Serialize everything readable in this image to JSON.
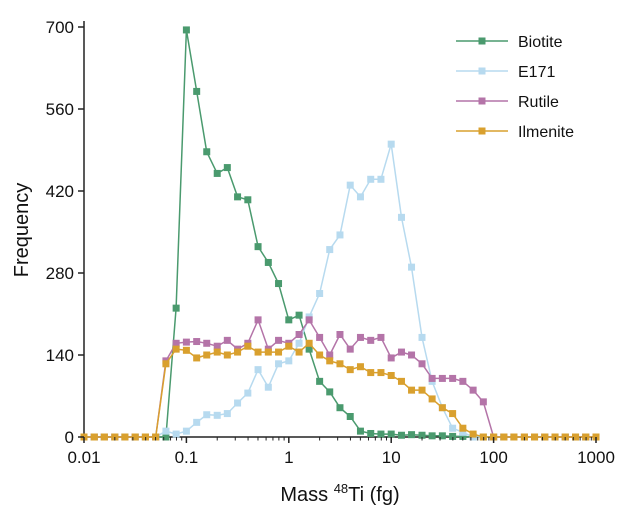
{
  "chart_data": {
    "type": "line",
    "xlabel": {
      "prefix": "Mass ",
      "sup": "48",
      "suffix": "Ti (fg)"
    },
    "ylabel": "Frequency",
    "xscale": "log",
    "xlim": [
      0.01,
      1000
    ],
    "ylim": [
      0,
      700
    ],
    "x_ticks": [
      0.01,
      0.1,
      1,
      10,
      100,
      1000
    ],
    "x_tick_labels": [
      "0.01",
      "0.1",
      "1",
      "10",
      "100",
      "1000"
    ],
    "y_ticks": [
      0,
      140,
      280,
      420,
      560,
      700
    ],
    "y_tick_labels": [
      "0",
      "140",
      "280",
      "420",
      "560",
      "700"
    ],
    "grid": false,
    "legend_position": "top-right",
    "series": [
      {
        "name": "Biotite",
        "color": "#4a9a6e",
        "x": [
          0.01,
          0.0126,
          0.0158,
          0.02,
          0.0251,
          0.0316,
          0.0398,
          0.0501,
          0.0631,
          0.0794,
          0.1,
          0.126,
          0.158,
          0.2,
          0.251,
          0.316,
          0.398,
          0.501,
          0.631,
          0.794,
          1.0,
          1.26,
          1.58,
          2.0,
          2.51,
          3.16,
          3.98,
          5.01,
          6.31,
          7.94,
          10.0,
          12.6,
          15.8,
          20.0,
          25.1,
          31.6,
          39.8,
          50.1,
          63.1,
          79.4,
          100,
          126,
          158,
          200,
          251,
          316,
          398,
          501,
          631,
          794,
          1000
        ],
        "y": [
          0,
          0,
          0,
          0,
          0,
          0,
          0,
          0,
          0,
          220,
          695,
          590,
          487,
          450,
          460,
          410,
          405,
          325,
          298,
          262,
          200,
          208,
          150,
          95,
          77,
          50,
          35,
          10,
          6,
          5,
          5,
          3,
          4,
          3,
          2,
          2,
          1,
          1,
          0,
          0,
          0,
          0,
          0,
          0,
          0,
          0,
          0,
          0,
          0,
          0,
          0
        ]
      },
      {
        "name": "E171",
        "color": "#b7daef",
        "x": [
          0.01,
          0.0126,
          0.0158,
          0.02,
          0.0251,
          0.0316,
          0.0398,
          0.0501,
          0.0631,
          0.0794,
          0.1,
          0.126,
          0.158,
          0.2,
          0.251,
          0.316,
          0.398,
          0.501,
          0.631,
          0.794,
          1.0,
          1.26,
          1.58,
          2.0,
          2.51,
          3.16,
          3.98,
          5.01,
          6.31,
          7.94,
          10.0,
          12.6,
          15.8,
          20.0,
          25.1,
          31.6,
          39.8,
          50.1,
          63.1,
          79.4,
          100,
          126,
          158,
          200,
          251,
          316,
          398,
          501,
          631,
          794,
          1000
        ],
        "y": [
          0,
          0,
          0,
          0,
          0,
          0,
          0,
          0,
          10,
          5,
          10,
          25,
          38,
          37,
          40,
          58,
          75,
          115,
          85,
          125,
          130,
          160,
          205,
          245,
          320,
          345,
          430,
          410,
          440,
          440,
          500,
          375,
          290,
          170,
          95,
          50,
          15,
          8,
          0,
          0,
          0,
          0,
          0,
          0,
          0,
          0,
          0,
          0,
          0,
          0,
          0
        ]
      },
      {
        "name": "Rutile",
        "color": "#b474a8",
        "x": [
          0.01,
          0.0126,
          0.0158,
          0.02,
          0.0251,
          0.0316,
          0.0398,
          0.0501,
          0.0631,
          0.0794,
          0.1,
          0.126,
          0.158,
          0.2,
          0.251,
          0.316,
          0.398,
          0.501,
          0.631,
          0.794,
          1.0,
          1.26,
          1.58,
          2.0,
          2.51,
          3.16,
          3.98,
          5.01,
          6.31,
          7.94,
          10.0,
          12.6,
          15.8,
          20.0,
          25.1,
          31.6,
          39.8,
          50.1,
          63.1,
          79.4,
          100,
          126,
          158,
          200,
          251,
          316,
          398,
          501,
          631,
          794,
          1000
        ],
        "y": [
          0,
          0,
          0,
          0,
          0,
          0,
          0,
          0,
          130,
          160,
          162,
          163,
          160,
          155,
          165,
          150,
          160,
          200,
          150,
          165,
          160,
          175,
          200,
          170,
          140,
          175,
          150,
          170,
          165,
          170,
          135,
          145,
          140,
          125,
          100,
          100,
          100,
          95,
          80,
          60,
          0,
          0,
          0,
          0,
          0,
          0,
          0,
          0,
          0,
          0,
          0
        ]
      },
      {
        "name": "Ilmenite",
        "color": "#d9a02e",
        "x": [
          0.01,
          0.0126,
          0.0158,
          0.02,
          0.0251,
          0.0316,
          0.0398,
          0.0501,
          0.0631,
          0.0794,
          0.1,
          0.126,
          0.158,
          0.2,
          0.251,
          0.316,
          0.398,
          0.501,
          0.631,
          0.794,
          1.0,
          1.26,
          1.58,
          2.0,
          2.51,
          3.16,
          3.98,
          5.01,
          6.31,
          7.94,
          10.0,
          12.6,
          15.8,
          20.0,
          25.1,
          31.6,
          39.8,
          50.1,
          63.1,
          79.4,
          100,
          126,
          158,
          200,
          251,
          316,
          398,
          501,
          631,
          794,
          1000
        ],
        "y": [
          0,
          0,
          0,
          0,
          0,
          0,
          0,
          0,
          125,
          150,
          148,
          135,
          140,
          145,
          140,
          145,
          155,
          145,
          145,
          145,
          155,
          145,
          160,
          140,
          130,
          125,
          115,
          120,
          110,
          110,
          105,
          95,
          80,
          80,
          65,
          50,
          40,
          15,
          5,
          0,
          0,
          0,
          0,
          0,
          0,
          0,
          0,
          0,
          0,
          0,
          0
        ]
      }
    ]
  }
}
